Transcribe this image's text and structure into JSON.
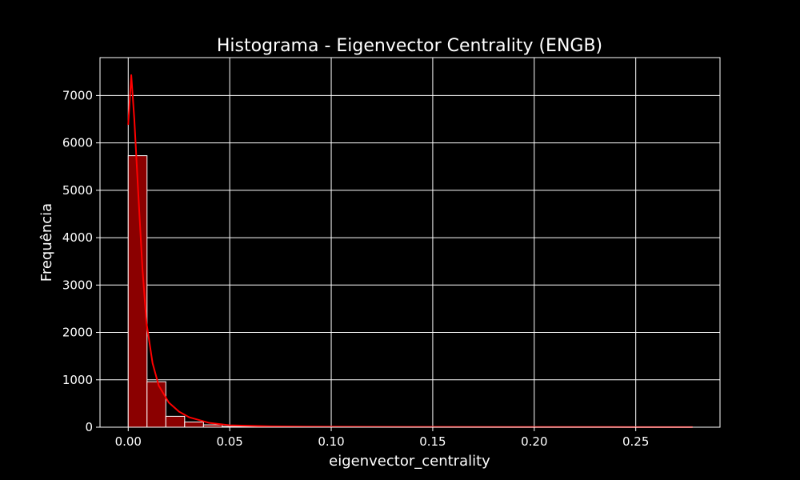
{
  "chart_data": {
    "type": "bar",
    "title": "Histograma - Eigenvector Centrality (ENGB)",
    "xlabel": "eigenvector_centrality",
    "ylabel": "Frequência",
    "xlim": [
      -0.0139,
      0.2915
    ],
    "ylim": [
      0,
      7800
    ],
    "x_ticks": [
      0.0,
      0.05,
      0.1,
      0.15,
      0.2,
      0.25
    ],
    "x_tick_labels": [
      "0.00",
      "0.05",
      "0.10",
      "0.15",
      "0.20",
      "0.25"
    ],
    "y_ticks": [
      0,
      1000,
      2000,
      3000,
      4000,
      5000,
      6000,
      7000
    ],
    "y_tick_labels": [
      "0",
      "1000",
      "2000",
      "3000",
      "4000",
      "5000",
      "6000",
      "7000"
    ],
    "grid": true,
    "bins": {
      "edges": [
        0.0,
        0.00927,
        0.01853,
        0.0278,
        0.03707,
        0.04633,
        0.0556,
        0.06487,
        0.07413,
        0.0834,
        0.09267,
        0.10193,
        0.1112,
        0.12047,
        0.12973,
        0.139,
        0.14827,
        0.15753,
        0.1668,
        0.17607,
        0.18533,
        0.1946,
        0.20387,
        0.21313,
        0.2224,
        0.23167,
        0.24093,
        0.2502,
        0.25947,
        0.26873,
        0.278
      ],
      "counts": [
        5730,
        960,
        230,
        110,
        50,
        15,
        8,
        6,
        5,
        4,
        3,
        3,
        2,
        2,
        2,
        2,
        1,
        1,
        1,
        1,
        1,
        1,
        1,
        1,
        1,
        1,
        1,
        1,
        1,
        1
      ]
    },
    "kde": {
      "x": [
        0.0,
        0.0015,
        0.003,
        0.005,
        0.007,
        0.009,
        0.012,
        0.015,
        0.02,
        0.025,
        0.03,
        0.04,
        0.05,
        0.07,
        0.1,
        0.15,
        0.2,
        0.25,
        0.278
      ],
      "y": [
        6380,
        7430,
        6500,
        4900,
        3350,
        2200,
        1350,
        880,
        520,
        330,
        210,
        90,
        40,
        18,
        10,
        6,
        4,
        3,
        2
      ]
    },
    "colors": {
      "background": "#000000",
      "bar_fill": "#8b0000",
      "bar_edge": "#ffffff",
      "kde_line": "#ff0000",
      "grid": "#ffffff",
      "text": "#ffffff"
    }
  }
}
